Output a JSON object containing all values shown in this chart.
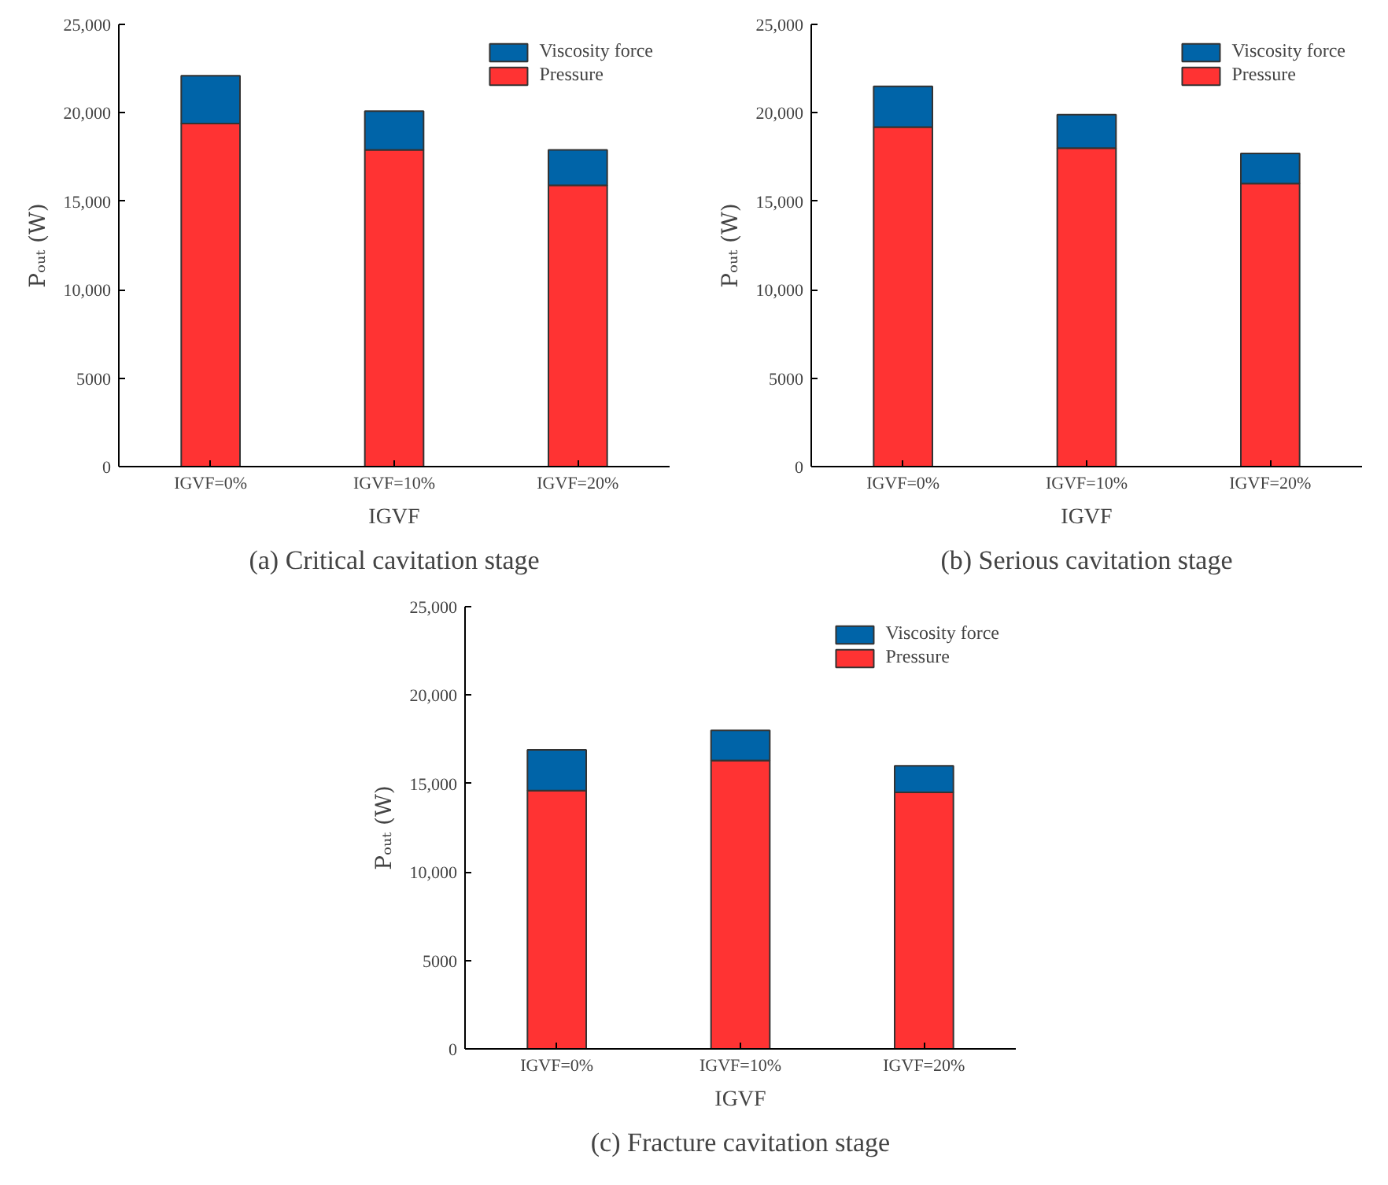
{
  "chart_data": [
    {
      "type": "bar",
      "stacked": true,
      "title": "(a) Critical cavitation stage",
      "xlabel": "IGVF",
      "ylabel": "Pₒᵤₜ (W)",
      "categories": [
        "IGVF=0%",
        "IGVF=10%",
        "IGVF=20%"
      ],
      "series": [
        {
          "name": "Pressure",
          "color": "#ff3333",
          "values": [
            19400,
            17900,
            15900
          ]
        },
        {
          "name": "Viscosity force",
          "color": "#0064a8",
          "values": [
            2700,
            2200,
            2000
          ]
        }
      ],
      "ylim": [
        0,
        25000
      ],
      "yticks": [
        0,
        5000,
        {
          "value": 10000,
          "label": "10,000"
        },
        {
          "value": 15000,
          "label": "15,000"
        },
        {
          "value": 20000,
          "label": "20,000"
        },
        {
          "value": 25000,
          "label": "25,000"
        }
      ],
      "legend": "top right",
      "grid": false
    },
    {
      "type": "bar",
      "stacked": true,
      "title": "(b) Serious cavitation stage",
      "xlabel": "IGVF",
      "ylabel": "Pₒᵤₜ (W)",
      "categories": [
        "IGVF=0%",
        "IGVF=10%",
        "IGVF=20%"
      ],
      "series": [
        {
          "name": "Pressure",
          "color": "#ff3333",
          "values": [
            19200,
            18000,
            16000
          ]
        },
        {
          "name": "Viscosity force",
          "color": "#0064a8",
          "values": [
            2300,
            1900,
            1700
          ]
        }
      ],
      "ylim": [
        0,
        25000
      ],
      "yticks": [
        0,
        5000,
        {
          "value": 10000,
          "label": "10,000"
        },
        {
          "value": 15000,
          "label": "15,000"
        },
        {
          "value": 20000,
          "label": "20,000"
        },
        {
          "value": 25000,
          "label": "25,000"
        }
      ],
      "legend": "top right",
      "grid": false
    },
    {
      "type": "bar",
      "stacked": true,
      "title": "(c) Fracture cavitation stage",
      "xlabel": "IGVF",
      "ylabel": "Pₒᵤₜ (W)",
      "categories": [
        "IGVF=0%",
        "IGVF=10%",
        "IGVF=20%"
      ],
      "series": [
        {
          "name": "Pressure",
          "color": "#ff3333",
          "values": [
            14600,
            16300,
            14500
          ]
        },
        {
          "name": "Viscosity force",
          "color": "#0064a8",
          "values": [
            2300,
            1700,
            1500
          ]
        }
      ],
      "ylim": [
        0,
        25000
      ],
      "yticks": [
        0,
        5000,
        {
          "value": 10000,
          "label": "10,000"
        },
        {
          "value": 15000,
          "label": "15,000"
        },
        {
          "value": 20000,
          "label": "20,000"
        },
        {
          "value": 25000,
          "label": "25,000"
        }
      ],
      "legend": "top right",
      "grid": false
    }
  ]
}
